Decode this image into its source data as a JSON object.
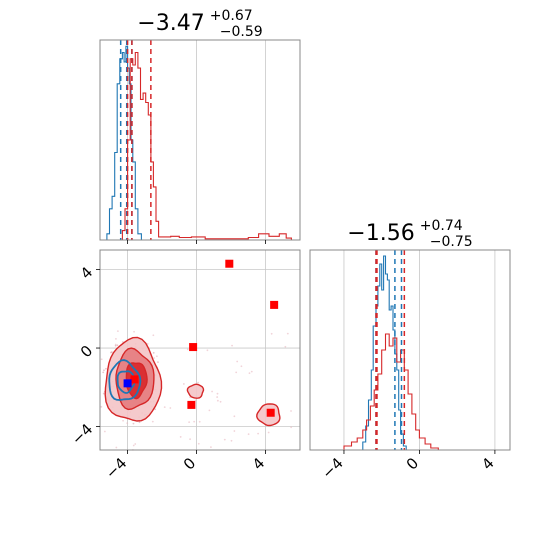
{
  "chart_data": [
    {
      "type": "histogram",
      "panel": "top-left",
      "title": {
        "median": "−3.47",
        "plus": "+0.67",
        "minus": "−0.59"
      },
      "xlim": [
        -5.6,
        6.0
      ],
      "grid": true,
      "series": [
        {
          "name": "",
          "color": "#1f77b4",
          "quantiles": [
            -4.4,
            -4.05,
            -3.75
          ],
          "hist": [
            {
              "x": -5.5,
              "y": 0.0
            },
            {
              "x": -5.2,
              "y": 0.02
            },
            {
              "x": -5.05,
              "y": 0.1
            },
            {
              "x": -4.9,
              "y": 0.14
            },
            {
              "x": -4.75,
              "y": 0.28
            },
            {
              "x": -4.6,
              "y": 0.5
            },
            {
              "x": -4.45,
              "y": 0.58
            },
            {
              "x": -4.3,
              "y": 0.6
            },
            {
              "x": -4.2,
              "y": 0.57
            },
            {
              "x": -4.1,
              "y": 0.62
            },
            {
              "x": -4.0,
              "y": 0.55
            },
            {
              "x": -3.9,
              "y": 0.5
            },
            {
              "x": -3.8,
              "y": 0.32
            },
            {
              "x": -3.7,
              "y": 0.25
            },
            {
              "x": -3.55,
              "y": 0.1
            },
            {
              "x": -3.4,
              "y": 0.02
            },
            {
              "x": -3.2,
              "y": 0.0
            }
          ]
        },
        {
          "name": "",
          "color": "#d62728",
          "quantiles": [
            -4.0,
            -3.75,
            -2.65
          ],
          "hist": [
            {
              "x": -4.6,
              "y": 0.0
            },
            {
              "x": -4.3,
              "y": 0.03
            },
            {
              "x": -4.15,
              "y": 0.1
            },
            {
              "x": -4.0,
              "y": 0.32
            },
            {
              "x": -3.85,
              "y": 0.58
            },
            {
              "x": -3.7,
              "y": 0.56
            },
            {
              "x": -3.55,
              "y": 0.6
            },
            {
              "x": -3.4,
              "y": 0.55
            },
            {
              "x": -3.25,
              "y": 0.45
            },
            {
              "x": -3.1,
              "y": 0.47
            },
            {
              "x": -2.95,
              "y": 0.44
            },
            {
              "x": -2.8,
              "y": 0.4
            },
            {
              "x": -2.65,
              "y": 0.25
            },
            {
              "x": -2.5,
              "y": 0.17
            },
            {
              "x": -2.35,
              "y": 0.06
            },
            {
              "x": -2.2,
              "y": 0.01
            },
            {
              "x": -1.5,
              "y": 0.012
            },
            {
              "x": -1.0,
              "y": 0.008
            },
            {
              "x": -0.3,
              "y": 0.01
            },
            {
              "x": 0.5,
              "y": 0.004
            },
            {
              "x": 1.5,
              "y": 0.004
            },
            {
              "x": 3.0,
              "y": 0.008
            },
            {
              "x": 3.6,
              "y": 0.02
            },
            {
              "x": 4.2,
              "y": 0.012
            },
            {
              "x": 4.8,
              "y": 0.02
            },
            {
              "x": 5.2,
              "y": 0.006
            },
            {
              "x": 5.5,
              "y": 0.0
            }
          ]
        }
      ]
    },
    {
      "type": "scatter",
      "panel": "bottom-left",
      "xlim": [
        -5.6,
        6.0
      ],
      "ylim": [
        -5.2,
        5.0
      ],
      "xticks": [
        -4,
        0,
        4
      ],
      "xtick_labels": [
        "−4",
        "0",
        "4"
      ],
      "yticks": [
        -4,
        0,
        4
      ],
      "ytick_labels": [
        "−4",
        "0",
        "4"
      ],
      "grid": true,
      "red_markers": [
        {
          "x": 1.9,
          "y": 4.3
        },
        {
          "x": 4.5,
          "y": 2.2
        },
        {
          "x": -0.2,
          "y": 0.05
        },
        {
          "x": -0.3,
          "y": -2.9
        },
        {
          "x": 4.3,
          "y": -3.3
        },
        {
          "x": -3.6,
          "y": -1.6
        }
      ],
      "blue_markers": [
        {
          "x": -4.0,
          "y": -1.8
        }
      ],
      "red_contours": [
        {
          "cx": -3.7,
          "cy": -1.7,
          "rx": 1.6,
          "ry": 2.1,
          "level": "outer"
        },
        {
          "cx": -3.6,
          "cy": -1.6,
          "rx": 1.1,
          "ry": 1.5,
          "level": "middle"
        },
        {
          "cx": -3.5,
          "cy": -1.6,
          "rx": 0.6,
          "ry": 0.9,
          "level": "inner"
        },
        {
          "cx": -0.05,
          "cy": -2.2,
          "rx": 0.45,
          "ry": 0.35,
          "level": "outer"
        },
        {
          "cx": 4.2,
          "cy": -3.4,
          "rx": 0.65,
          "ry": 0.55,
          "level": "outer"
        }
      ],
      "blue_contours": [
        {
          "cx": -4.2,
          "cy": -1.7,
          "rx": 0.9,
          "ry": 1.0
        },
        {
          "cx": -4.1,
          "cy": -1.7,
          "rx": 0.5,
          "ry": 0.55
        }
      ]
    },
    {
      "type": "histogram",
      "panel": "bottom-right",
      "title": {
        "median": "−1.56",
        "plus": "+0.74",
        "minus": "−0.75"
      },
      "xlim": [
        -5.8,
        4.8
      ],
      "xticks": [
        -4,
        0,
        4
      ],
      "xtick_labels": [
        "−4",
        "0",
        "4"
      ],
      "grid": true,
      "series": [
        {
          "name": "",
          "color": "#1f77b4",
          "quantiles": [
            -2.3,
            -1.3,
            -0.95
          ],
          "hist": [
            {
              "x": -3.2,
              "y": 0.0
            },
            {
              "x": -3.0,
              "y": 0.04
            },
            {
              "x": -2.85,
              "y": 0.12
            },
            {
              "x": -2.7,
              "y": 0.25
            },
            {
              "x": -2.55,
              "y": 0.4
            },
            {
              "x": -2.45,
              "y": 0.62
            },
            {
              "x": -2.3,
              "y": 0.72
            },
            {
              "x": -2.2,
              "y": 0.82
            },
            {
              "x": -2.1,
              "y": 0.93
            },
            {
              "x": -2.0,
              "y": 0.8
            },
            {
              "x": -1.9,
              "y": 0.97
            },
            {
              "x": -1.8,
              "y": 0.88
            },
            {
              "x": -1.7,
              "y": 0.85
            },
            {
              "x": -1.6,
              "y": 0.7
            },
            {
              "x": -1.5,
              "y": 0.72
            },
            {
              "x": -1.4,
              "y": 0.6
            },
            {
              "x": -1.3,
              "y": 0.48
            },
            {
              "x": -1.2,
              "y": 0.4
            },
            {
              "x": -1.1,
              "y": 0.2
            },
            {
              "x": -1.0,
              "y": 0.08
            },
            {
              "x": -0.85,
              "y": 0.02
            },
            {
              "x": -0.7,
              "y": 0.0
            }
          ]
        },
        {
          "name": "",
          "color": "#d62728",
          "quantiles": [
            -2.3,
            -2.25,
            -0.8
          ],
          "hist": [
            {
              "x": -4.4,
              "y": 0.0
            },
            {
              "x": -4.0,
              "y": 0.02
            },
            {
              "x": -3.6,
              "y": 0.04
            },
            {
              "x": -3.3,
              "y": 0.06
            },
            {
              "x": -3.0,
              "y": 0.1
            },
            {
              "x": -2.8,
              "y": 0.15
            },
            {
              "x": -2.6,
              "y": 0.22
            },
            {
              "x": -2.4,
              "y": 0.3
            },
            {
              "x": -2.2,
              "y": 0.38
            },
            {
              "x": -2.0,
              "y": 0.5
            },
            {
              "x": -1.8,
              "y": 0.58
            },
            {
              "x": -1.6,
              "y": 0.52
            },
            {
              "x": -1.4,
              "y": 0.56
            },
            {
              "x": -1.2,
              "y": 0.44
            },
            {
              "x": -1.0,
              "y": 0.5
            },
            {
              "x": -0.8,
              "y": 0.4
            },
            {
              "x": -0.6,
              "y": 0.28
            },
            {
              "x": -0.4,
              "y": 0.18
            },
            {
              "x": -0.2,
              "y": 0.1
            },
            {
              "x": 0.0,
              "y": 0.06
            },
            {
              "x": 0.3,
              "y": 0.03
            },
            {
              "x": 0.6,
              "y": 0.01
            },
            {
              "x": 1.0,
              "y": 0.0
            }
          ]
        }
      ]
    }
  ]
}
